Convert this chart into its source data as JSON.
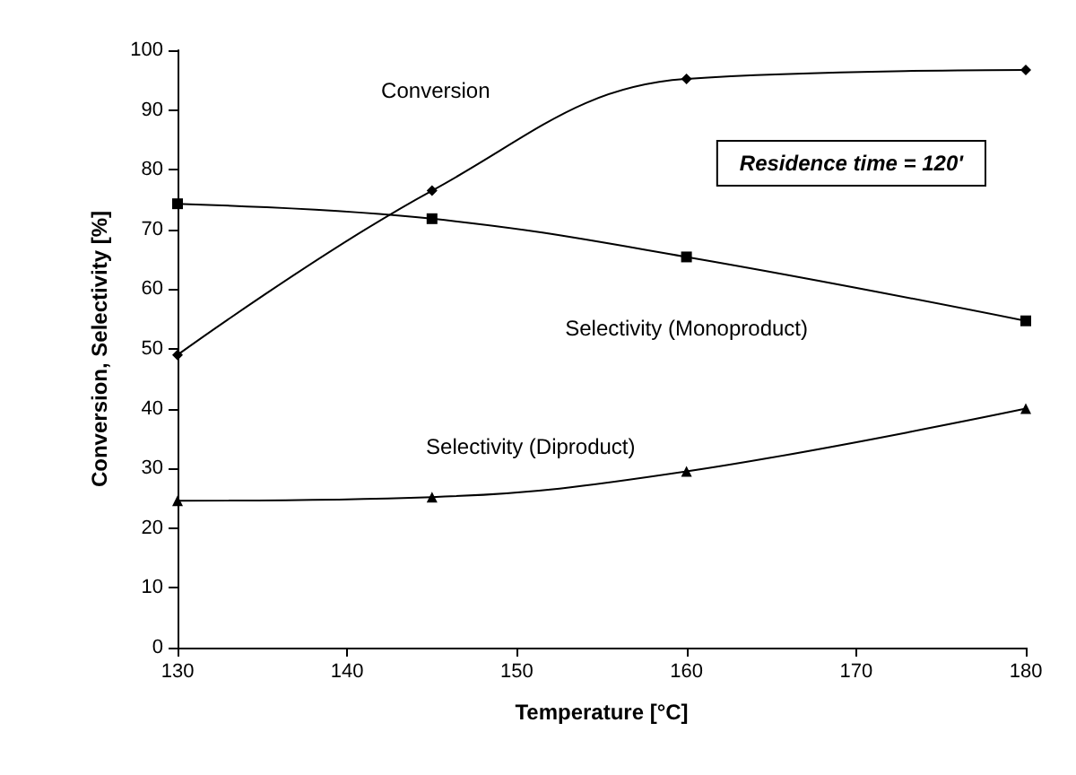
{
  "chart_data": {
    "type": "line",
    "xlabel": "Temperature [°C]",
    "ylabel": "Conversion, Selectivity [%]",
    "x": [
      130,
      145,
      160,
      180
    ],
    "xlim": [
      130,
      180
    ],
    "xticks": [
      130,
      140,
      150,
      160,
      170,
      180
    ],
    "ylim": [
      0,
      100
    ],
    "yticks": [
      0,
      10,
      20,
      30,
      40,
      50,
      60,
      70,
      80,
      90,
      100
    ],
    "grid": false,
    "legend": false,
    "line_style": "solid",
    "annotations": [
      "Residence time = 120'"
    ],
    "series": [
      {
        "name": "Conversion",
        "color": "#000000",
        "marker": "diamond",
        "values": [
          49,
          76.5,
          95.2,
          96.7
        ]
      },
      {
        "name": "Selectivity (Monoproduct)",
        "color": "#000000",
        "marker": "square",
        "values": [
          74.3,
          71.8,
          65.4,
          54.7
        ]
      },
      {
        "name": "Selectivity (Diproduct)",
        "color": "#000000",
        "marker": "triangle",
        "values": [
          24.6,
          25.2,
          29.5,
          40
        ]
      }
    ]
  }
}
